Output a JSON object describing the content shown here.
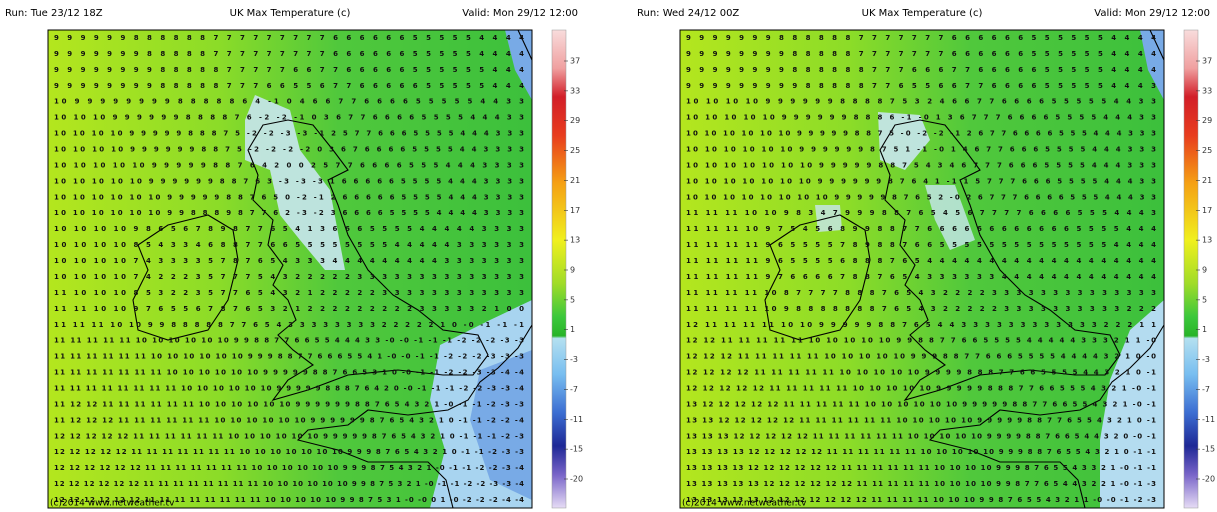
{
  "panels": [
    {
      "run": "Run: Tue 23/12 18Z",
      "title": "UK Max Temperature (c)",
      "valid": "Valid: Mon 29/12 12:00",
      "credit": "(c)2014 www.netweather.tv",
      "colorbar_labels": [
        37,
        33,
        29,
        25,
        21,
        17,
        13,
        9,
        5,
        1,
        -3,
        -7,
        -11,
        -15,
        -20
      ],
      "grid_rows": [
        "9 9 9 9 9 9 8 8 8 8 8 8 7 7 7 7 7 7 7 7 7 6 6 6 6 6 6 5 5 5 5 5 4 4 4 4",
        "9 9 9 9 9 9 9 8 8 8 8 8 7 7 7 7 7 7 7 7 7 6 6 6 6 6 6 5 5 5 5 5 4 4 4 4",
        "9 9 9 9 9 9 9 9 8 8 8 8 8 7 7 7 7 7 6 6 7 7 6 6 6 6 6 5 5 5 5 5 5 4 4 4",
        "9 9 9 9 9 9 9 9 8 8 8 8 8 7 7 7 6 6 5 5 6 7 7 6 6 6 6 6 5 5 5 5 5 4 4 4",
        "10 9 9 9 9 9 9 9 9 8 8 8 8 8 6 4 -1 0 4 6 6 7 7 6 6 6 6 5 5 5 5 5 4 4 3 3",
        "10 10 10 9 9 9 9 9 9 8 8 8 8 7 6 -2 -2 -1 0 3 6 7 7 6 6 6 6 5 5 5 5 4 4 4 3 3",
        "10 10 10 10 9 9 9 9 9 8 8 8 7 5 -2 -2 -3 -3 -1 2 5 7 7 6 6 6 5 5 5 5 4 4 4 3 3 3",
        "10 10 10 10 9 9 9 9 9 9 8 8 7 5 -2 -2 -2 -2 0 3 6 7 6 6 6 6 5 5 5 5 4 4 3 3 3 3",
        "10 10 10 10 10 9 9 9 9 9 8 8 7 6 4 2 0 0 2 5 7 7 6 6 6 6 5 5 5 4 4 4 3 3 3 3",
        "10 10 10 10 10 9 9 9 9 9 9 8 8 7 6 3 -3 -3 -3 1 6 6 6 6 6 5 5 5 5 4 4 4 3 3 3 3",
        "10 10 10 10 10 10 9 9 9 9 9 8 8 7 6 5 0 -2 -1 2 6 6 6 6 6 5 5 5 5 4 4 4 3 3 3 3",
        "10 10 10 10 10 10 9 9 8 8 8 9 8 7 7 6 2 -3 -2 3 6 6 6 6 5 5 5 5 4 4 4 4 3 3 3 3",
        "10 10 10 10 9 8 6 5 6 7 8 9 8 7 7 6 5 4 1 3 6 6 6 5 5 5 5 4 4 4 4 4 3 3 3 3",
        "10 10 10 10 8 5 4 3 3 4 6 8 8 7 7 6 6 5 5 5 5 5 5 5 5 4 4 4 4 4 3 3 3 3 3 3",
        "10 10 10 10 7 4 3 3 3 3 5 7 8 7 6 5 4 3 3 3 4 4 4 4 4 4 4 4 4 3 3 3 3 3 3 3",
        "10 10 10 10 7 4 2 2 2 3 5 7 7 7 5 4 3 2 2 2 2 2 3 3 3 3 3 3 3 3 3 3 3 3 3 3",
        "11 10 10 10 8 5 3 2 2 3 5 7 7 6 5 4 3 2 1 2 2 2 2 2 3 3 3 3 3 3 3 3 3 3 3 3",
        "11 11 10 10 9 7 6 5 5 6 7 8 7 6 5 3 2 1 2 2 2 2 2 2 2 2 2 3 3 3 3 3 2 1 0 0",
        "11 11 11 10 10 9 9 8 8 8 8 8 7 7 6 5 4 3 3 3 3 3 3 3 3 2 2 2 2 2 1 0 -0 -1 -1 -1",
        "11 11 11 11 11 10 10 10 10 10 10 9 9 8 8 7 7 6 6 5 5 4 4 4 3 3 -0 -0 -1 -1 -1 -2 -2 -2 -3 -3",
        "11 11 11 11 11 11 10 10 10 10 10 10 9 9 9 8 8 7 7 6 6 6 5 5 4 1 -0 -0 -1 -1 -2 -2 -2 -3 -3 -3",
        "11 11 11 11 11 11 11 10 10 10 10 10 10 9 9 9 9 9 8 8 7 6 6 5 3 1 0 -0 -1 -1 -2 -2 -3 -3 -4 -4",
        "11 11 11 11 11 11 11 11 10 10 10 10 10 10 9 9 9 9 9 8 8 8 7 6 4 2 0 -0 -1 -1 -1 -2 -2 -3 -3 -4",
        "11 12 12 11 11 11 11 11 11 10 10 10 10 10 10 9 9 9 9 9 9 8 8 7 6 5 4 3 2 1 -0 -1 -1 -2 -3 -3",
        "11 12 12 12 11 11 11 11 11 11 10 10 10 10 10 10 9 9 9 9 9 9 8 7 6 5 4 3 2 1 0 -1 -1 -2 -2 -4",
        "12 12 12 12 12 11 11 11 11 11 11 10 10 10 10 10 10 9 9 9 9 9 8 7 6 5 4 3 2 1 0 -1 -1 -1 -2 -3",
        "12 12 12 12 12 11 11 11 11 11 11 11 10 10 10 10 10 10 10 9 9 9 8 7 6 5 4 3 2 1 0 -1 -1 -2 -3 -3",
        "12 12 12 12 12 12 11 11 11 11 11 11 11 10 10 10 10 10 10 9 9 9 8 7 5 4 3 2 1 -0 -1 -1 -2 -2 -3 -4",
        "12 12 12 12 12 12 11 11 11 11 11 11 11 11 10 10 10 10 10 10 9 9 8 7 5 3 2 1 -0 -1 -1 -2 -2 -3 -3 -4",
        "12 12 12 12 12 12 11 11 11 11 11 11 11 11 10 10 10 10 10 9 9 8 7 5 3 1 -0 -0 0 1 -0 -2 -2 -2 -4 -4"
      ]
    },
    {
      "run": "Run: Wed 24/12 00Z",
      "title": "UK Max Temperature (c)",
      "valid": "Valid: Mon 29/12 12:00",
      "credit": "(c)2014 www.netweather.tv",
      "colorbar_labels": [
        37,
        33,
        29,
        25,
        21,
        17,
        13,
        9,
        5,
        1,
        -3,
        -7,
        -11,
        -15,
        -20
      ],
      "grid_rows": [
        "9 9 9 9 9 9 9 8 8 8 8 8 8 7 7 7 7 7 7 7 6 6 6 6 6 6 5 5 5 5 5 5 4 4 4 4",
        "9 9 9 9 9 9 9 9 8 8 8 8 8 7 7 7 7 7 7 7 6 6 6 6 6 6 5 5 5 5 5 5 4 4 4 4",
        "9 9 9 9 9 9 9 9 8 8 8 8 8 8 7 7 7 6 6 6 7 7 6 6 6 6 6 5 5 5 5 5 4 4 4 4",
        "9 9 9 9 9 9 9 9 9 8 8 8 8 8 7 7 6 5 5 6 6 7 7 6 6 6 6 5 5 5 5 5 4 4 4 3",
        "10 10 10 10 9 9 9 9 9 9 8 8 8 8 7 5 3 2 4 6 6 7 7 6 6 6 6 5 5 5 5 5 4 4 3 3",
        "10 10 10 10 10 9 9 9 9 9 9 8 8 8 6 -1 -0 1 3 6 7 7 7 6 6 6 6 5 5 5 5 4 4 4 3 3",
        "10 10 10 10 10 10 9 9 9 9 9 8 8 7 5 -0 -2 -2 -1 2 6 7 7 6 6 6 6 5 5 5 4 4 4 3 3 3",
        "10 10 10 10 10 10 9 9 9 9 9 9 8 7 5 1 -1 -0 1 4 6 7 7 6 6 6 5 5 5 5 4 4 4 3 3 3",
        "10 10 10 10 10 10 10 9 9 9 9 9 8 8 7 5 4 3 4 6 7 7 7 6 6 6 5 5 5 5 4 4 4 3 3 3",
        "10 10 10 10 10 10 10 9 9 9 9 9 9 8 7 6 4 1 -1 1 5 7 7 7 6 6 6 5 5 5 5 4 4 4 3 3",
        "10 10 10 10 10 10 10 10 9 9 9 9 9 8 7 6 5 2 -0 2 6 7 7 7 6 6 6 6 5 5 5 4 4 4 3 3",
        "11 11 11 10 10 9 8 3 4 7 9 9 9 8 8 7 6 5 4 5 6 7 7 7 7 6 6 6 6 5 5 5 4 4 4 3",
        "11 11 11 10 9 7 5 4 5 6 8 9 9 8 8 7 7 6 6 6 6 6 6 6 6 6 6 6 6 5 5 5 5 4 4 4",
        "11 11 11 11 9 6 5 5 5 5 7 8 9 8 8 7 6 6 5 5 5 5 5 5 5 5 5 5 5 5 5 5 4 4 4 4",
        "11 11 11 11 9 6 5 5 5 5 6 8 8 8 7 6 5 4 4 4 4 4 4 4 4 4 4 4 4 4 4 4 4 4 4 4",
        "11 11 11 11 9 7 6 6 6 6 7 8 8 7 6 5 4 3 3 3 3 3 3 4 4 4 4 4 4 4 4 4 4 4 4 4",
        "11 11 11 11 10 8 7 7 7 7 8 8 8 7 6 5 4 3 2 2 2 2 3 3 3 3 3 3 3 3 3 3 3 3 3 3",
        "11 11 11 11 10 9 8 8 8 8 8 8 8 7 6 5 4 3 2 2 2 2 2 3 3 3 3 3 3 3 3 3 3 2 2 2",
        "12 11 11 11 11 10 10 9 9 9 9 9 8 8 7 6 5 4 4 3 3 3 3 3 3 3 3 3 3 3 3 2 2 2 1 1",
        "12 12 11 11 11 11 11 10 10 10 10 10 9 9 8 8 7 7 6 6 5 5 5 5 4 4 4 4 4 3 3 3 2 1 1 -0",
        "12 12 12 11 11 11 11 11 10 10 10 10 10 9 9 9 8 8 7 7 6 6 6 5 5 5 5 4 4 4 4 3 2 1 0 -0",
        "12 12 12 12 11 11 11 11 11 10 10 10 10 10 9 9 9 9 8 8 8 7 7 6 6 5 5 5 5 4 4 3 2 1 0 -1",
        "12 12 12 12 12 11 11 11 11 11 10 10 10 10 10 9 9 9 9 9 8 8 8 7 7 6 6 5 5 5 4 3 2 1 -0 -1",
        "13 12 12 12 12 12 11 11 11 11 11 10 10 10 10 10 10 9 9 9 9 9 8 8 7 7 6 6 5 5 4 3 2 1 -0 -1",
        "13 13 12 12 12 12 12 11 11 11 11 11 11 10 10 10 10 10 9 9 9 9 9 8 8 7 7 6 5 5 4 3 2 1 0 -1",
        "13 13 13 12 12 12 12 12 11 11 11 11 11 11 10 10 10 10 10 9 9 9 9 8 8 7 6 6 5 4 4 3 2 0 -0 -1",
        "13 13 13 13 12 12 12 12 12 11 11 11 11 11 11 10 10 10 10 10 9 9 9 8 8 7 6 5 5 4 3 2 1 0 -1 -1",
        "13 13 13 13 12 12 12 12 12 12 11 11 11 11 11 11 10 10 10 10 9 9 9 8 7 6 5 5 4 3 3 2 1 -0 -1 -1",
        "13 13 13 13 13 12 12 12 12 12 12 11 11 11 11 11 10 10 10 10 9 9 8 7 7 6 5 4 4 3 2 2 1 -0 -1 -3",
        "13 13 13 13 13 12 12 12 12 12 12 12 11 11 11 11 10 10 10 9 9 8 7 6 5 5 4 3 2 1 1 -0 -0 -1 -2 -3"
      ]
    }
  ]
}
